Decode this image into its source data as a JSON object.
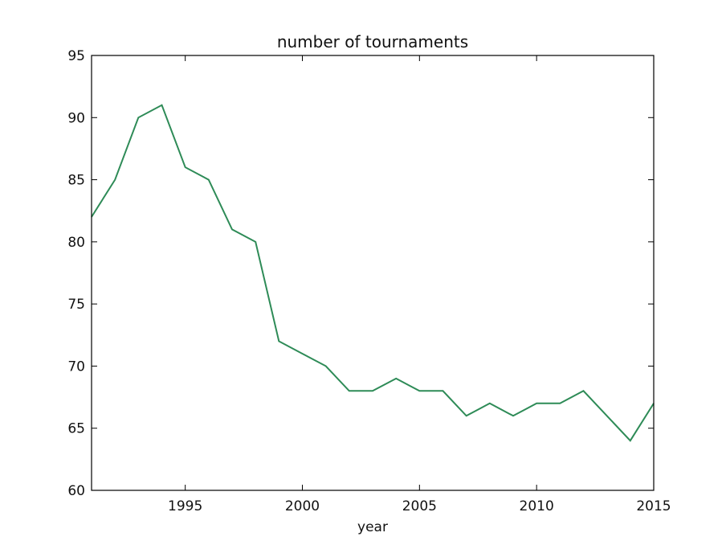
{
  "chart_data": {
    "type": "line",
    "title": "number of tournaments",
    "xlabel": "year",
    "ylabel": "",
    "xlim": [
      1991,
      2015
    ],
    "ylim": [
      60,
      95
    ],
    "xticks": [
      1995,
      2000,
      2005,
      2010,
      2015
    ],
    "yticks": [
      60,
      65,
      70,
      75,
      80,
      85,
      90,
      95
    ],
    "grid": false,
    "line_color": "#2e8b57",
    "series": [
      {
        "x": [
          1991,
          1992,
          1993,
          1994,
          1995,
          1996,
          1997,
          1998,
          1999,
          2000,
          2001,
          2002,
          2003,
          2004,
          2005,
          2006,
          2007,
          2008,
          2009,
          2010,
          2011,
          2012,
          2013,
          2014,
          2015
        ],
        "values": [
          82,
          85,
          90,
          91,
          86,
          85,
          81,
          80,
          72,
          71,
          70,
          68,
          68,
          69,
          68,
          68,
          66,
          67,
          66,
          67,
          67,
          68,
          66,
          64,
          67
        ]
      }
    ]
  }
}
